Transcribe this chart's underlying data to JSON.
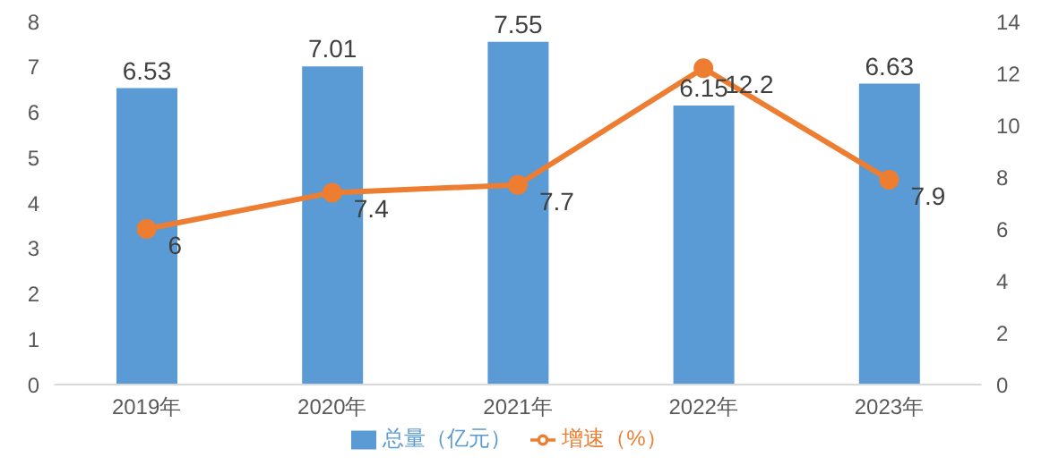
{
  "chart_data": {
    "type": "bar",
    "categories": [
      "2019年",
      "2020年",
      "2021年",
      "2022年",
      "2023年"
    ],
    "series": [
      {
        "name": "总量（亿元）",
        "color": "#5b9bd5",
        "values": [
          6.53,
          7.01,
          7.55,
          6.15,
          6.63
        ]
      },
      {
        "name": "增速（%）",
        "type": "line",
        "axis": "y2",
        "color": "#ed7d31",
        "values": [
          6,
          7.4,
          7.7,
          12.2,
          7.9
        ]
      }
    ],
    "ylim": [
      0,
      8
    ],
    "yticks": [
      0,
      1,
      2,
      3,
      4,
      5,
      6,
      7,
      8
    ],
    "y2lim": [
      0,
      14
    ],
    "y2ticks": [
      0,
      2,
      4,
      6,
      8,
      10,
      12,
      14
    ],
    "data_labels": true,
    "legend": "bottom",
    "marker": "circle"
  }
}
